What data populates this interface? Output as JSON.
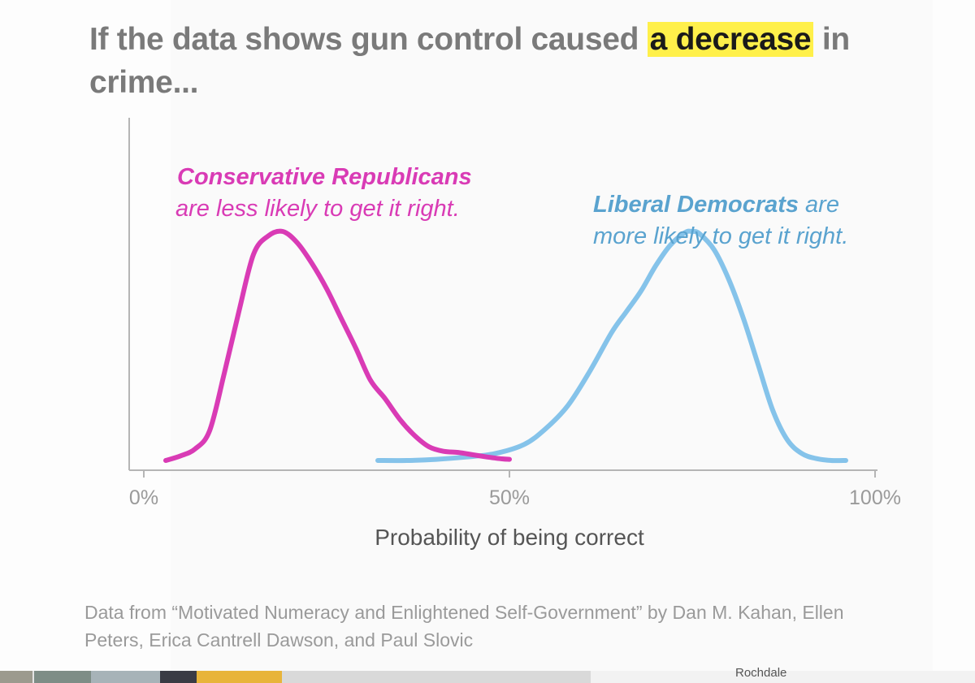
{
  "headline": {
    "before": "If the data shows gun control caused ",
    "highlight": "a decrease",
    "after": " in crime..."
  },
  "caption": "Data from “Motivated Numeracy and Enlightened Self-Government” by Dan M. Kahan, Ellen Peters, Erica Cantrell Dawson, and Paul Slovic",
  "bottom_strip": {
    "partial_label": "Rochdale"
  },
  "colors": {
    "conservative": "#d93bb5",
    "liberal": "#85c3ea",
    "liberal_text": "#5aa3cf",
    "axis": "#b5b5b5",
    "tick_label": "#9a9a9a",
    "highlight": "#fff04a"
  },
  "chart_data": {
    "type": "line",
    "title": "",
    "xlabel": "Probability of being correct",
    "ylabel": "",
    "xlim": [
      0,
      100
    ],
    "ylim": [
      0,
      1
    ],
    "x_ticks": [
      "0%",
      "50%",
      "100%"
    ],
    "x_tick_values": [
      0,
      50,
      100
    ],
    "series": [
      {
        "name": "Conservative Republicans",
        "annotation": [
          "Conservative Republicans",
          "are less likely to get it right."
        ],
        "x": [
          3,
          5,
          7,
          9,
          11,
          13,
          15,
          17,
          19,
          21,
          23,
          25,
          27,
          29,
          31,
          33,
          35,
          37,
          39,
          41,
          43,
          45,
          47,
          49,
          50
        ],
        "y": [
          0.0,
          0.02,
          0.05,
          0.13,
          0.38,
          0.65,
          0.9,
          0.98,
          1.0,
          0.95,
          0.86,
          0.75,
          0.62,
          0.49,
          0.35,
          0.27,
          0.18,
          0.11,
          0.06,
          0.04,
          0.035,
          0.025,
          0.015,
          0.007,
          0.005
        ]
      },
      {
        "name": "Liberal Democrats",
        "annotation_bold": "Liberal Democrats",
        "annotation_rest": "are",
        "annotation_line2": "more likely to get it right.",
        "x": [
          32,
          36,
          40,
          44,
          48,
          52,
          55,
          58,
          61,
          64,
          66,
          68,
          70,
          72,
          74,
          75,
          76,
          78,
          80,
          82,
          84,
          86,
          88,
          90,
          92,
          94,
          96
        ],
        "y": [
          0.0,
          0.0,
          0.005,
          0.015,
          0.03,
          0.07,
          0.14,
          0.24,
          0.39,
          0.56,
          0.65,
          0.74,
          0.85,
          0.94,
          0.995,
          1.0,
          0.99,
          0.92,
          0.79,
          0.62,
          0.42,
          0.22,
          0.09,
          0.03,
          0.008,
          0.0,
          0.0
        ]
      }
    ]
  }
}
